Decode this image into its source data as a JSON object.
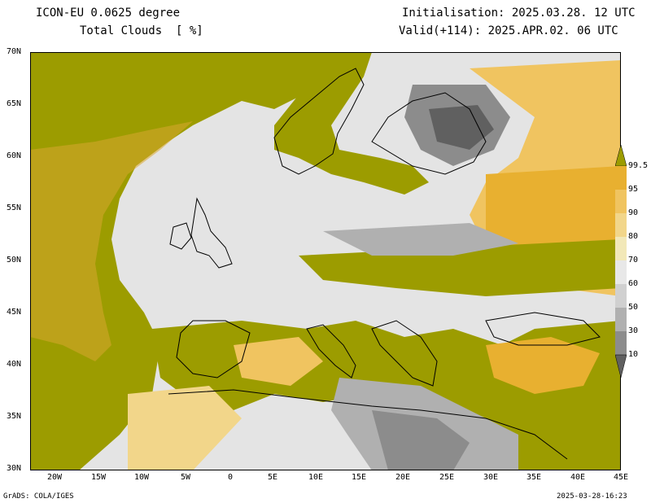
{
  "header": {
    "model": "ICON-EU 0.0625 degree",
    "field": "Total Clouds  [ %]",
    "init": "Initialisation: 2025.03.28. 12 UTC",
    "valid": "Valid(+114): 2025.APR.02. 06 UTC"
  },
  "footer": {
    "left": "GrADS: COLA/IGES",
    "right": "2025-03-28-16:23"
  },
  "axes": {
    "lat_labels": [
      "70N",
      "65N",
      "60N",
      "55N",
      "50N",
      "45N",
      "40N",
      "35N",
      "30N"
    ],
    "lon_labels": [
      "20W",
      "15W",
      "10W",
      "5W",
      "0",
      "5E",
      "10E",
      "15E",
      "20E",
      "25E",
      "30E",
      "35E",
      "40E",
      "45E"
    ]
  },
  "colorbar": {
    "labels": [
      "99.5",
      "95",
      "90",
      "80",
      "70",
      "60",
      "50",
      "30",
      "10"
    ],
    "colors": [
      "#e8b030",
      "#f0c460",
      "#f2d68a",
      "#f2e8b8",
      "#e8e8e8",
      "#d0d0d0",
      "#b0b0b0",
      "#8c8c8c",
      "#606060"
    ],
    "above_color": "#9c9c00"
  },
  "colors": {
    "high_cloud": "#9c9c00",
    "clear": "#e4e4e4",
    "coast": "#000000"
  }
}
